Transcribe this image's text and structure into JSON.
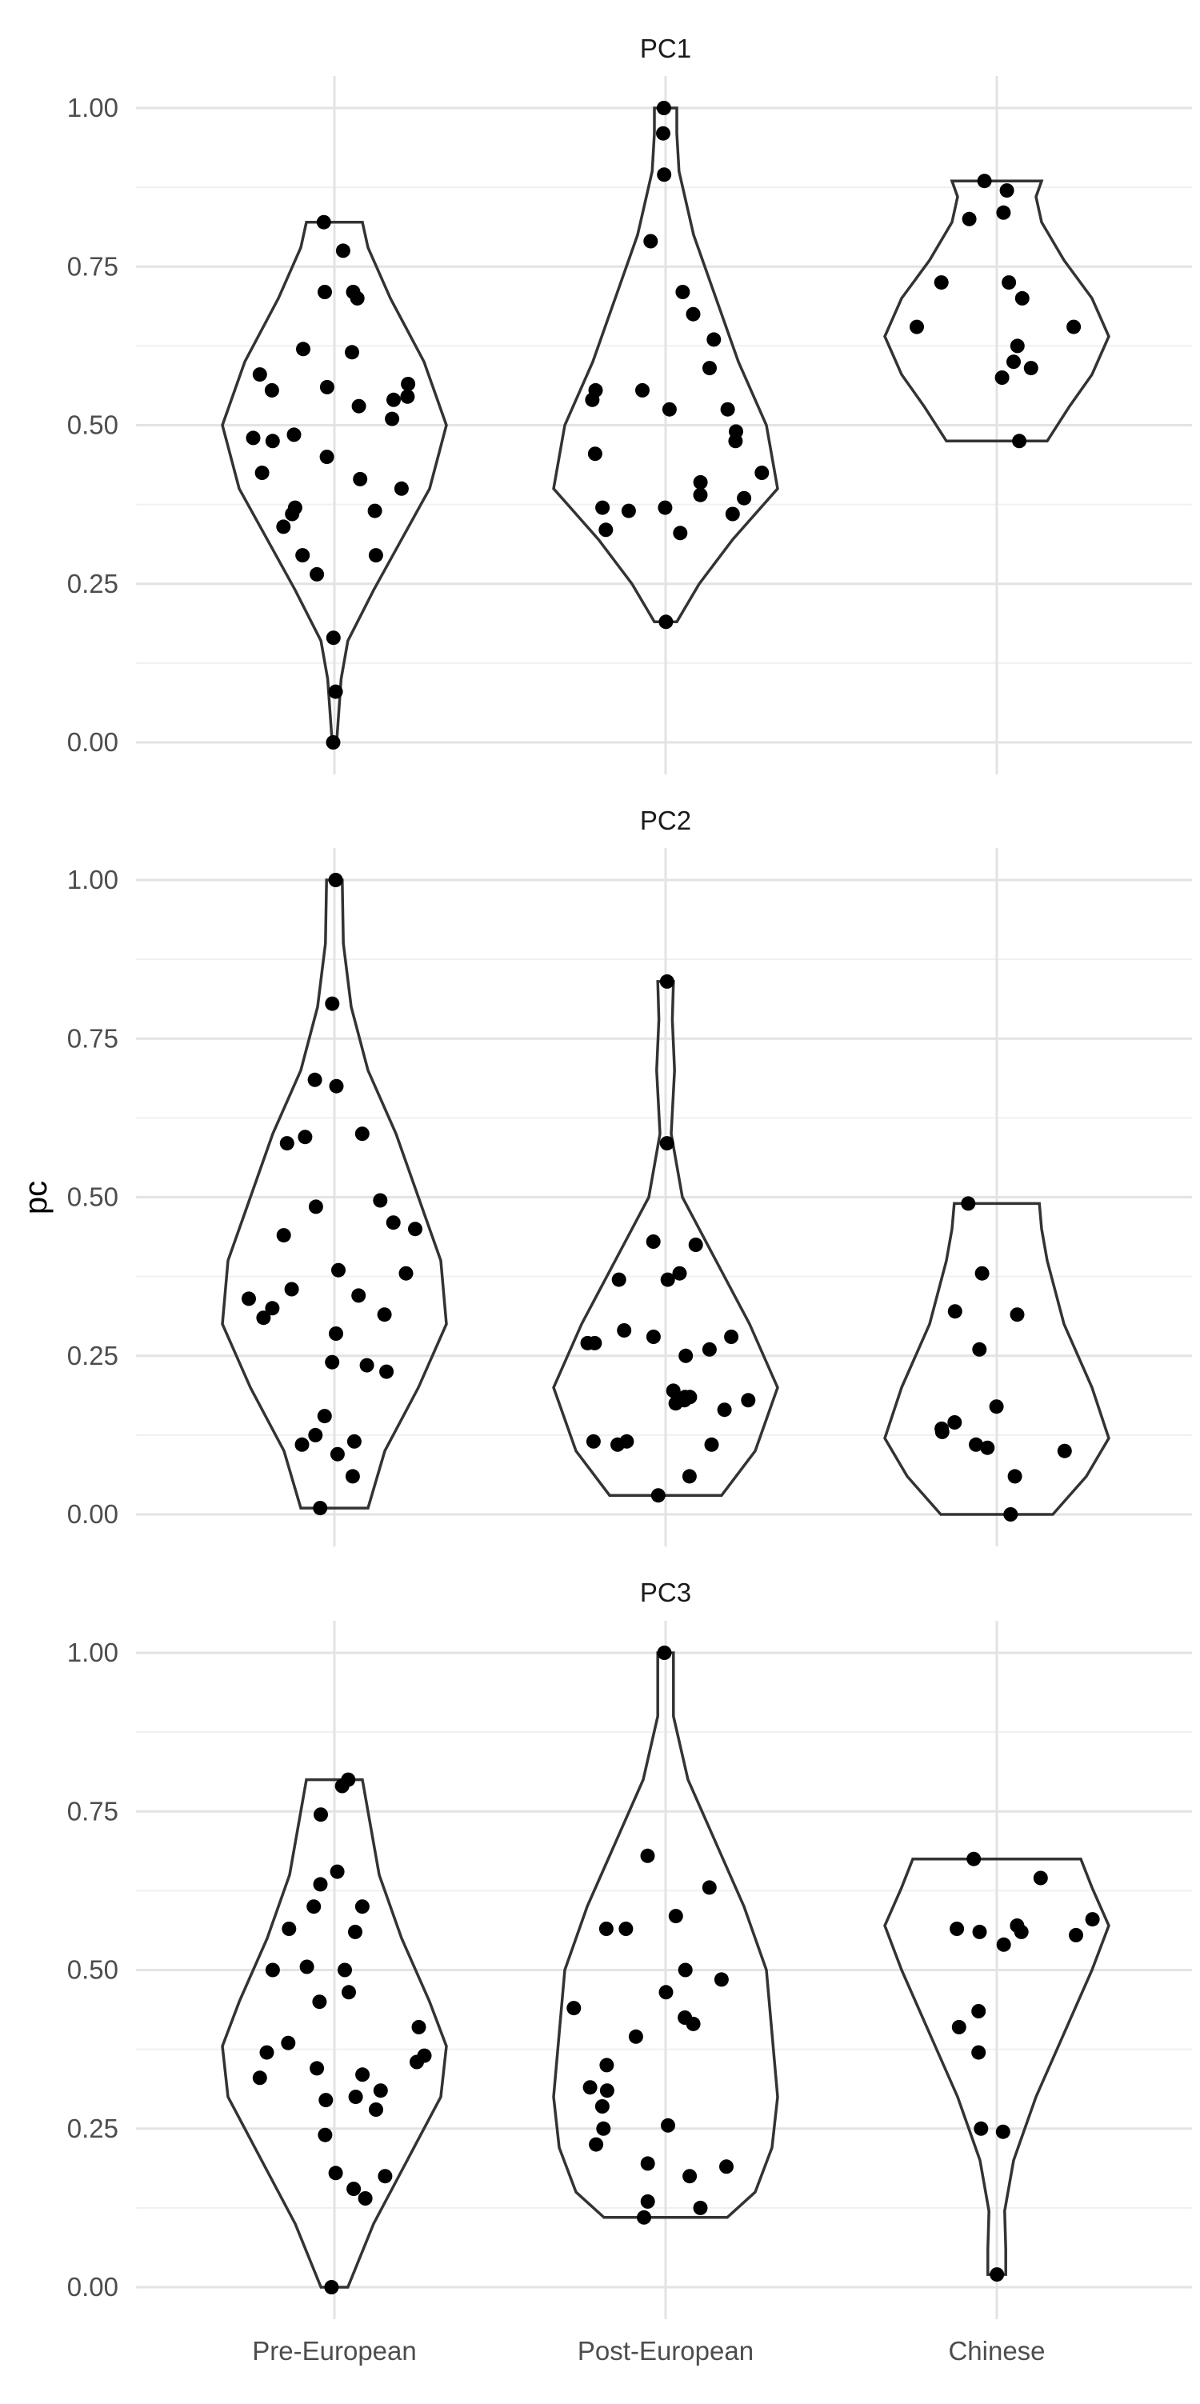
{
  "chart_data": {
    "type": "violin",
    "ylabel": "pc",
    "xlabel": "",
    "categories": [
      "Pre-European",
      "Post-European",
      "Chinese"
    ],
    "y_ticks": [
      "0.00",
      "0.25",
      "0.50",
      "0.75",
      "1.00"
    ],
    "ylim": [
      0,
      1
    ],
    "grid": true,
    "facets": [
      {
        "title": "PC1",
        "groups": [
          {
            "category": "Pre-European",
            "points": [
              0.0,
              0.08,
              0.165,
              0.265,
              0.295,
              0.295,
              0.34,
              0.36,
              0.365,
              0.37,
              0.4,
              0.415,
              0.425,
              0.45,
              0.475,
              0.48,
              0.485,
              0.51,
              0.53,
              0.54,
              0.545,
              0.555,
              0.56,
              0.565,
              0.58,
              0.615,
              0.62,
              0.7,
              0.71,
              0.71,
              0.775,
              0.82
            ],
            "density": [
              [
                0.0,
                0.02
              ],
              [
                0.05,
                0.04
              ],
              [
                0.1,
                0.06
              ],
              [
                0.16,
                0.12
              ],
              [
                0.24,
                0.35
              ],
              [
                0.32,
                0.6
              ],
              [
                0.4,
                0.85
              ],
              [
                0.5,
                1.0
              ],
              [
                0.6,
                0.8
              ],
              [
                0.7,
                0.5
              ],
              [
                0.78,
                0.3
              ],
              [
                0.82,
                0.25
              ]
            ]
          },
          {
            "category": "Post-European",
            "points": [
              0.19,
              0.33,
              0.335,
              0.36,
              0.365,
              0.37,
              0.37,
              0.385,
              0.39,
              0.41,
              0.425,
              0.455,
              0.475,
              0.49,
              0.525,
              0.525,
              0.54,
              0.555,
              0.555,
              0.59,
              0.635,
              0.675,
              0.71,
              0.79,
              0.895,
              0.96,
              1.0
            ],
            "density": [
              [
                0.19,
                0.1
              ],
              [
                0.25,
                0.3
              ],
              [
                0.32,
                0.6
              ],
              [
                0.4,
                1.0
              ],
              [
                0.5,
                0.9
              ],
              [
                0.6,
                0.65
              ],
              [
                0.7,
                0.45
              ],
              [
                0.8,
                0.25
              ],
              [
                0.9,
                0.12
              ],
              [
                0.96,
                0.1
              ],
              [
                1.0,
                0.1
              ]
            ]
          },
          {
            "category": "Chinese",
            "points": [
              0.475,
              0.575,
              0.59,
              0.6,
              0.625,
              0.655,
              0.655,
              0.7,
              0.725,
              0.725,
              0.825,
              0.835,
              0.87,
              0.885
            ],
            "density": [
              [
                0.475,
                0.45
              ],
              [
                0.53,
                0.65
              ],
              [
                0.58,
                0.85
              ],
              [
                0.64,
                1.0
              ],
              [
                0.7,
                0.85
              ],
              [
                0.76,
                0.6
              ],
              [
                0.82,
                0.4
              ],
              [
                0.86,
                0.35
              ],
              [
                0.885,
                0.4
              ]
            ]
          }
        ]
      },
      {
        "title": "PC2",
        "groups": [
          {
            "category": "Pre-European",
            "points": [
              0.01,
              0.06,
              0.095,
              0.11,
              0.115,
              0.125,
              0.155,
              0.225,
              0.235,
              0.24,
              0.285,
              0.31,
              0.315,
              0.325,
              0.34,
              0.345,
              0.355,
              0.38,
              0.385,
              0.44,
              0.45,
              0.46,
              0.485,
              0.495,
              0.585,
              0.595,
              0.6,
              0.675,
              0.685,
              0.805,
              1.0
            ],
            "density": [
              [
                0.01,
                0.3
              ],
              [
                0.1,
                0.45
              ],
              [
                0.2,
                0.75
              ],
              [
                0.3,
                1.0
              ],
              [
                0.4,
                0.95
              ],
              [
                0.5,
                0.75
              ],
              [
                0.6,
                0.55
              ],
              [
                0.7,
                0.3
              ],
              [
                0.8,
                0.15
              ],
              [
                0.9,
                0.08
              ],
              [
                1.0,
                0.07
              ]
            ]
          },
          {
            "category": "Post-European",
            "points": [
              0.03,
              0.06,
              0.11,
              0.11,
              0.115,
              0.115,
              0.165,
              0.175,
              0.18,
              0.18,
              0.185,
              0.185,
              0.195,
              0.25,
              0.26,
              0.27,
              0.27,
              0.28,
              0.28,
              0.29,
              0.37,
              0.37,
              0.38,
              0.425,
              0.43,
              0.585,
              0.84
            ],
            "density": [
              [
                0.03,
                0.5
              ],
              [
                0.1,
                0.8
              ],
              [
                0.2,
                1.0
              ],
              [
                0.3,
                0.75
              ],
              [
                0.4,
                0.45
              ],
              [
                0.5,
                0.15
              ],
              [
                0.6,
                0.05
              ],
              [
                0.7,
                0.08
              ],
              [
                0.78,
                0.06
              ],
              [
                0.84,
                0.07
              ]
            ]
          },
          {
            "category": "Chinese",
            "points": [
              0.0,
              0.06,
              0.1,
              0.105,
              0.11,
              0.13,
              0.135,
              0.145,
              0.17,
              0.26,
              0.315,
              0.32,
              0.38,
              0.49
            ],
            "density": [
              [
                0.0,
                0.5
              ],
              [
                0.06,
                0.8
              ],
              [
                0.12,
                1.0
              ],
              [
                0.2,
                0.85
              ],
              [
                0.3,
                0.6
              ],
              [
                0.4,
                0.45
              ],
              [
                0.45,
                0.4
              ],
              [
                0.49,
                0.38
              ]
            ]
          }
        ]
      },
      {
        "title": "PC3",
        "groups": [
          {
            "category": "Pre-European",
            "points": [
              0.0,
              0.14,
              0.155,
              0.175,
              0.18,
              0.24,
              0.28,
              0.295,
              0.3,
              0.31,
              0.33,
              0.335,
              0.345,
              0.355,
              0.365,
              0.37,
              0.385,
              0.41,
              0.45,
              0.465,
              0.5,
              0.5,
              0.505,
              0.56,
              0.565,
              0.6,
              0.6,
              0.635,
              0.655,
              0.745,
              0.79,
              0.8
            ],
            "density": [
              [
                0.0,
                0.12
              ],
              [
                0.1,
                0.35
              ],
              [
                0.2,
                0.65
              ],
              [
                0.3,
                0.95
              ],
              [
                0.38,
                1.0
              ],
              [
                0.45,
                0.85
              ],
              [
                0.55,
                0.6
              ],
              [
                0.65,
                0.4
              ],
              [
                0.75,
                0.3
              ],
              [
                0.8,
                0.25
              ]
            ]
          },
          {
            "category": "Post-European",
            "points": [
              0.11,
              0.125,
              0.135,
              0.175,
              0.19,
              0.195,
              0.225,
              0.25,
              0.255,
              0.285,
              0.31,
              0.315,
              0.35,
              0.395,
              0.415,
              0.425,
              0.44,
              0.465,
              0.485,
              0.5,
              0.565,
              0.565,
              0.585,
              0.63,
              0.68,
              1.0
            ],
            "density": [
              [
                0.11,
                0.55
              ],
              [
                0.15,
                0.8
              ],
              [
                0.22,
                0.95
              ],
              [
                0.3,
                1.0
              ],
              [
                0.4,
                0.95
              ],
              [
                0.5,
                0.9
              ],
              [
                0.6,
                0.7
              ],
              [
                0.7,
                0.45
              ],
              [
                0.8,
                0.2
              ],
              [
                0.9,
                0.07
              ],
              [
                1.0,
                0.07
              ]
            ]
          },
          {
            "category": "Chinese",
            "points": [
              0.02,
              0.245,
              0.25,
              0.37,
              0.41,
              0.435,
              0.54,
              0.555,
              0.56,
              0.56,
              0.565,
              0.57,
              0.58,
              0.645,
              0.675
            ],
            "density": [
              [
                0.02,
                0.08
              ],
              [
                0.06,
                0.08
              ],
              [
                0.12,
                0.07
              ],
              [
                0.2,
                0.15
              ],
              [
                0.3,
                0.35
              ],
              [
                0.4,
                0.6
              ],
              [
                0.5,
                0.85
              ],
              [
                0.57,
                1.0
              ],
              [
                0.63,
                0.85
              ],
              [
                0.675,
                0.75
              ]
            ]
          }
        ]
      }
    ]
  }
}
